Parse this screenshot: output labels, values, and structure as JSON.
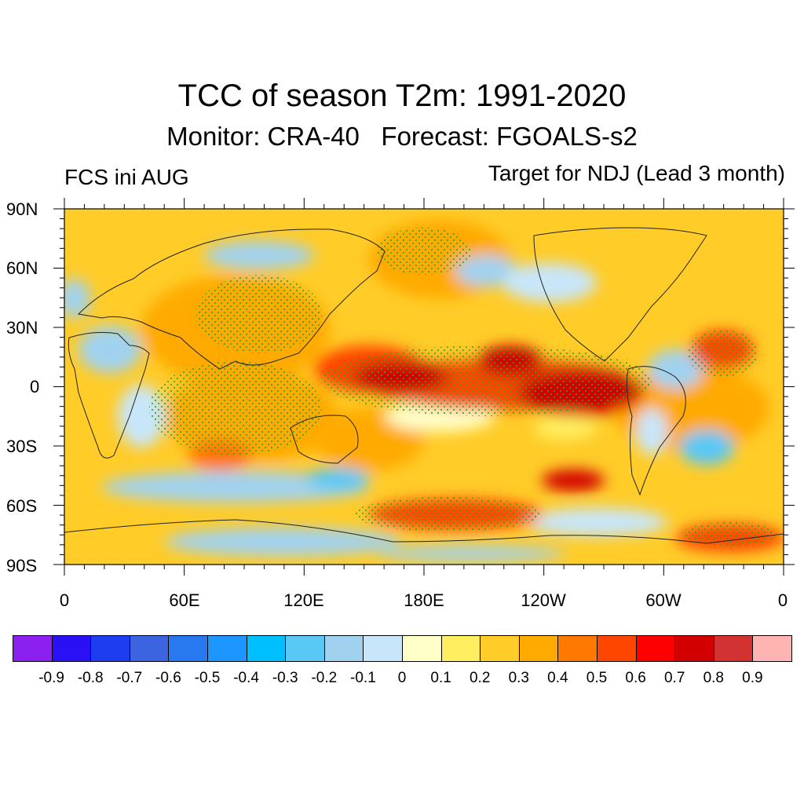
{
  "title": "TCC of season T2m: 1991-2020",
  "subtitle": "Monitor: CRA-40   Forecast: FGOALS-s2",
  "left_label": "FCS ini AUG",
  "right_label": "Target for NDJ (Lead 3 month)",
  "lat_labels": [
    "90N",
    "60N",
    "30N",
    "0",
    "30S",
    "60S",
    "90S"
  ],
  "lon_labels": [
    "0",
    "60E",
    "120E",
    "180E",
    "120W",
    "60W",
    "0"
  ],
  "colorbar": {
    "colors": [
      "#8b20f0",
      "#2a10f5",
      "#1e3cf0",
      "#3c64e0",
      "#2878f0",
      "#1e96ff",
      "#00bfff",
      "#5ac8f5",
      "#a0d2f0",
      "#c8e6fa",
      "#ffffc8",
      "#ffee60",
      "#ffcc28",
      "#ffaa00",
      "#ff7800",
      "#ff4600",
      "#ff0000",
      "#d20000",
      "#d23232",
      "#ffb4b4"
    ],
    "labels": [
      "-0.9",
      "-0.8",
      "-0.7",
      "-0.6",
      "-0.5",
      "-0.4",
      "-0.3",
      "-0.2",
      "-0.1",
      "0",
      "0.1",
      "0.2",
      "0.3",
      "0.4",
      "0.5",
      "0.6",
      "0.7",
      "0.8",
      "0.9"
    ]
  }
}
